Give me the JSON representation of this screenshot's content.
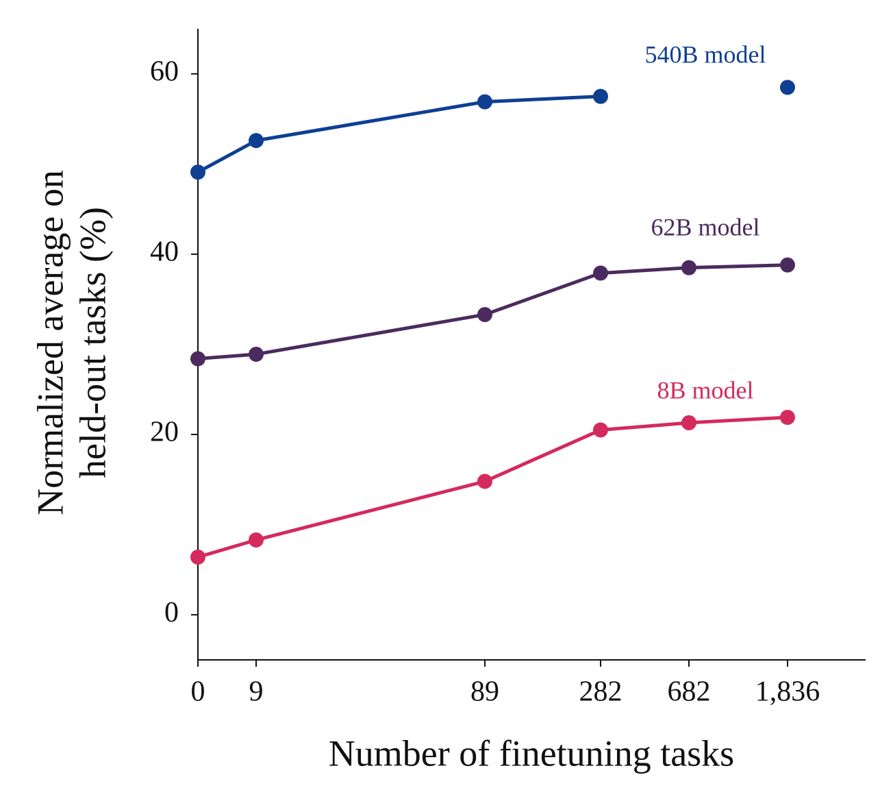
{
  "chart_data": {
    "type": "line",
    "xlabel": "Number of finetuning tasks",
    "ylabel": [
      "Normalized average on",
      "held-out tasks (%)"
    ],
    "categories": [
      "0",
      "9",
      "89",
      "282",
      "682",
      "1,836"
    ],
    "series": [
      {
        "name": "540B model",
        "color": "#0e3f92",
        "values": [
          49.1,
          52.6,
          56.9,
          57.5,
          null,
          58.5
        ]
      },
      {
        "name": "62B model",
        "color": "#4b2b5f",
        "values": [
          28.4,
          28.9,
          33.3,
          37.9,
          38.5,
          38.8
        ]
      },
      {
        "name": "8B model",
        "color": "#d42a5e",
        "values": [
          6.4,
          8.3,
          14.8,
          20.5,
          21.3,
          21.9
        ]
      }
    ],
    "ylim": [
      -5,
      65
    ],
    "yticks": [
      0,
      20,
      40,
      60
    ]
  }
}
